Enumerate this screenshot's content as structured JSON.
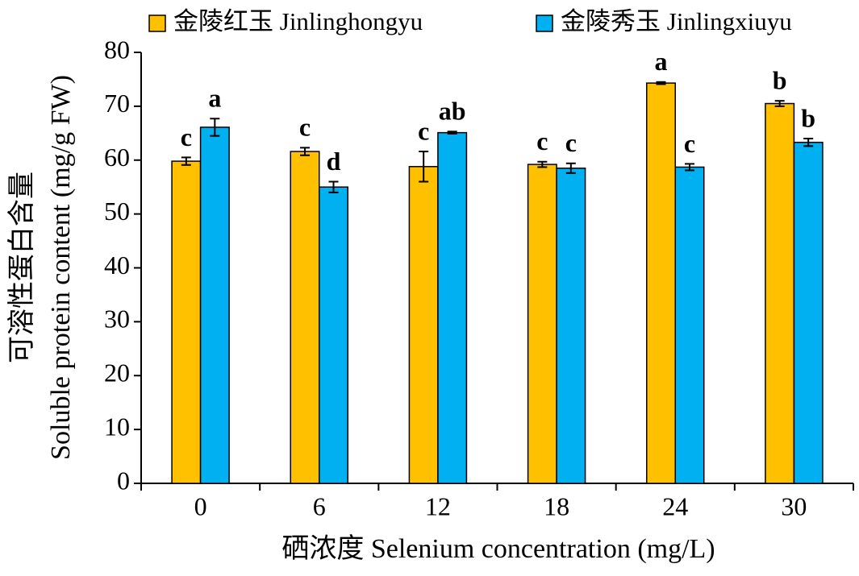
{
  "chart_data": {
    "type": "bar",
    "xlabel": "硒浓度 Selenium concentration (mg/L)",
    "ylabel": [
      "可溶性蛋白含量",
      "Soluble protein content (mg/g FW)"
    ],
    "categories": [
      "0",
      "6",
      "12",
      "18",
      "24",
      "30"
    ],
    "series": [
      {
        "name": "金陵红玉 Jinlinghongyu",
        "color": "#FFC000",
        "values": [
          59.8,
          61.6,
          58.8,
          59.2,
          74.3,
          70.5
        ],
        "errors": [
          0.7,
          0.7,
          2.8,
          0.5,
          0.2,
          0.5
        ],
        "letters": [
          "c",
          "c",
          "c",
          "c",
          "a",
          "b"
        ]
      },
      {
        "name": "金陵秀玉 Jinlingxiuyu",
        "color": "#00B0F0",
        "values": [
          66.1,
          55.0,
          65.1,
          58.5,
          58.7,
          63.3
        ],
        "errors": [
          1.6,
          1.0,
          0.2,
          0.9,
          0.6,
          0.7
        ],
        "letters": [
          "a",
          "d",
          "ab",
          "c",
          "c",
          "b"
        ]
      }
    ],
    "ylim": [
      0,
      80
    ],
    "yticks": [
      0,
      10,
      20,
      30,
      40,
      50,
      60,
      70,
      80
    ],
    "grid": false
  }
}
